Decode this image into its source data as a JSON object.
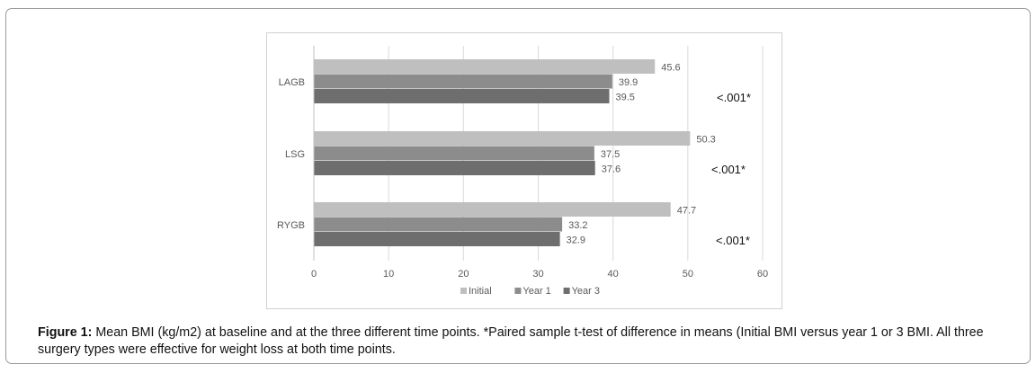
{
  "colors": {
    "initial": "#bfbfbf",
    "year1": "#8c8c8c",
    "year3": "#6e6e6e",
    "grid": "#d9d9d9",
    "text": "#595959"
  },
  "chart_data": {
    "type": "bar",
    "orientation": "horizontal",
    "categories": [
      "LAGB",
      "LSG",
      "RYGB"
    ],
    "series": [
      {
        "name": "Initial",
        "values": [
          45.6,
          50.3,
          47.7
        ]
      },
      {
        "name": "Year 1",
        "values": [
          39.9,
          37.5,
          33.2
        ]
      },
      {
        "name": "Year 3",
        "values": [
          39.5,
          37.6,
          32.9
        ]
      }
    ],
    "xlim": [
      0,
      60
    ],
    "xticks": [
      0,
      10,
      20,
      30,
      40,
      50,
      60
    ],
    "annotations": [
      "<.001*",
      "<.001*",
      "<.001*"
    ],
    "legend": "bottom",
    "grid": true
  },
  "caption": {
    "label": "Figure 1:",
    "text": " Mean BMI (kg/m2) at baseline and at the three different time points. *Paired sample t-test of difference in means (Initial BMI versus year 1 or 3 BMI. All three surgery types were effective for weight loss at both time points."
  }
}
